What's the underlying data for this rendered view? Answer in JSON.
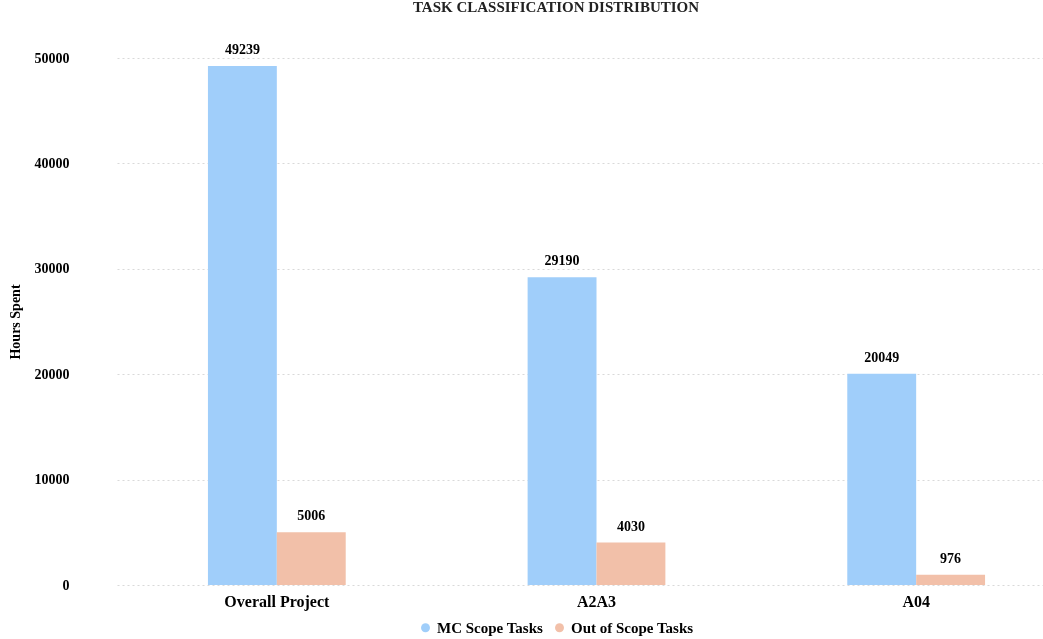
{
  "chart_data": {
    "type": "bar",
    "title": "TASK CLASSIFICATION DISTRIBUTION",
    "ylabel": "Hours Spent",
    "categories": [
      "Overall Project",
      "A2A3",
      "A04"
    ],
    "series": [
      {
        "name": "MC Scope Tasks",
        "color": "#a0cefa",
        "values": [
          49239,
          29190,
          20049
        ]
      },
      {
        "name": "Out of Scope Tasks",
        "color": "#f2c0a9",
        "values": [
          5006,
          4030,
          976
        ]
      }
    ],
    "ylim": [
      0,
      50000
    ],
    "yticks": [
      0,
      10000,
      20000,
      30000,
      40000,
      50000
    ],
    "grid": "y",
    "legend": "bottom",
    "data_labels": true
  }
}
